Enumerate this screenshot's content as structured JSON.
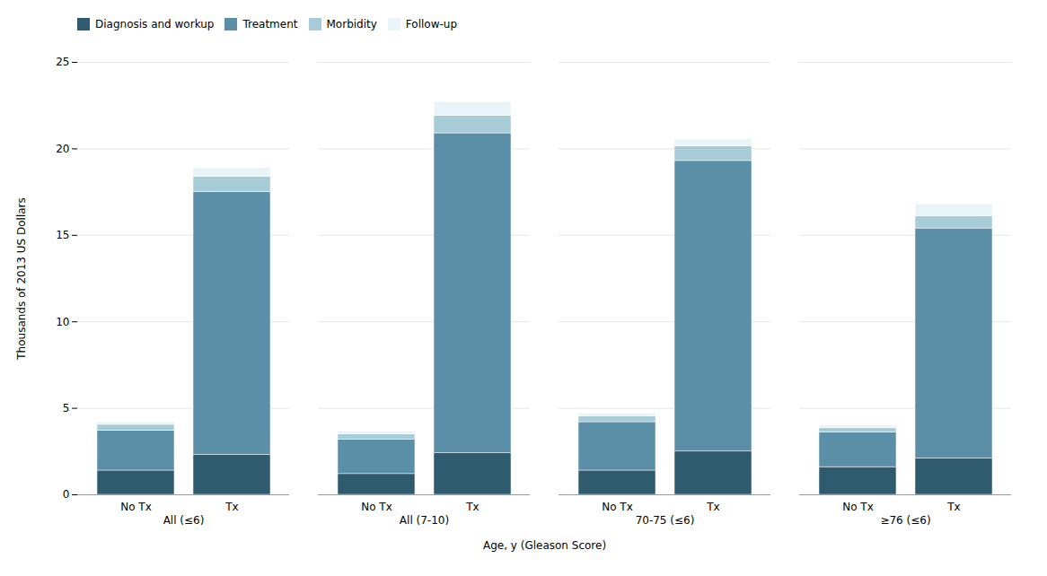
{
  "chart_data": {
    "type": "bar",
    "stacked": true,
    "xlabel": "Age, y (Gleason Score)",
    "ylabel": "Thousands of 2013 US Dollars",
    "groups": [
      "All (≤6)",
      "All (7-10)",
      "70-75 (≤6)",
      "≥76 (≤6)"
    ],
    "categories": [
      "No Tx",
      "Tx",
      "No Tx",
      "Tx",
      "No Tx",
      "Tx",
      "No Tx",
      "Tx"
    ],
    "series": [
      {
        "name": "Diagnosis and workup",
        "color": "#2e5b6e",
        "values": [
          1.4,
          2.3,
          1.2,
          2.4,
          1.4,
          2.5,
          1.6,
          2.1
        ]
      },
      {
        "name": "Treatment",
        "color": "#5b8fa8",
        "values": [
          2.3,
          15.2,
          2.0,
          18.5,
          2.8,
          16.8,
          2.0,
          13.3
        ]
      },
      {
        "name": "Morbidity",
        "color": "#a8ccd7",
        "values": [
          0.35,
          0.9,
          0.3,
          1.0,
          0.35,
          0.85,
          0.25,
          0.7
        ]
      },
      {
        "name": "Follow-up",
        "color": "#e8f4f8",
        "values": [
          0.15,
          0.5,
          0.15,
          0.8,
          0.15,
          0.4,
          0.15,
          0.7
        ]
      }
    ],
    "ylim": [
      0,
      25
    ],
    "yticks": [
      0,
      5,
      10,
      15,
      20,
      25
    ],
    "grid": true,
    "legend": "upper left"
  }
}
